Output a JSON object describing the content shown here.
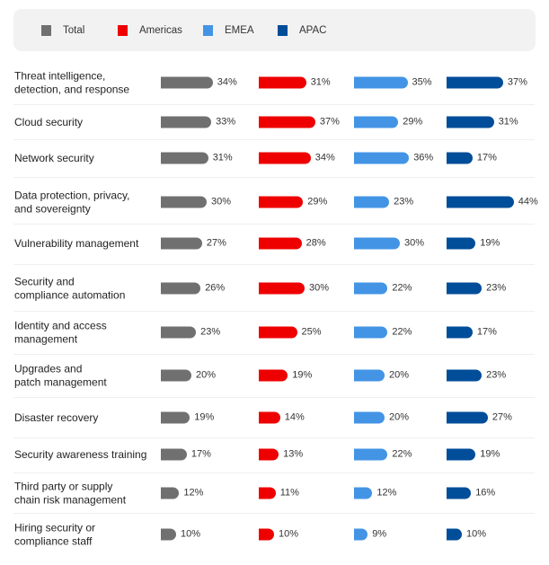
{
  "chart_data": {
    "type": "bar",
    "orientation": "horizontal",
    "title": "",
    "xlabel": "",
    "ylabel": "",
    "xlim": [
      0,
      100
    ],
    "value_suffix": "%",
    "grid": false,
    "legend_position": "top",
    "categories": [
      "Threat intelligence,\ndetection, and response",
      "Cloud security",
      "Network security",
      "Data protection, privacy,\nand sovereignty",
      "Vulnerability management",
      "Security and\ncompliance automation",
      "Identity and access\nmanagement",
      "Upgrades and\npatch management",
      "Disaster recovery",
      "Security awareness training",
      "Third party or supply\nchain risk management",
      "Hiring security or\ncompliance staff"
    ],
    "series": [
      {
        "name": "Total",
        "color": "#707070",
        "values": [
          34,
          33,
          31,
          30,
          27,
          26,
          23,
          20,
          19,
          17,
          12,
          10
        ]
      },
      {
        "name": "Americas",
        "color": "#ee0000",
        "values": [
          31,
          37,
          34,
          29,
          28,
          30,
          25,
          19,
          14,
          13,
          11,
          10
        ]
      },
      {
        "name": "EMEA",
        "color": "#4394e5",
        "values": [
          35,
          29,
          36,
          23,
          30,
          22,
          22,
          20,
          20,
          22,
          12,
          9
        ]
      },
      {
        "name": "APAC",
        "color": "#004d99",
        "values": [
          37,
          31,
          17,
          44,
          19,
          23,
          17,
          23,
          27,
          19,
          16,
          10
        ]
      }
    ]
  }
}
